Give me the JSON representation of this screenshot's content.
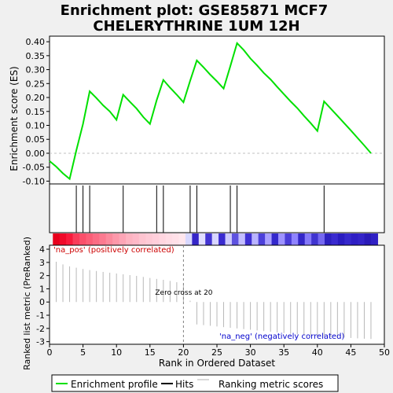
{
  "chart_data": {
    "type": "line",
    "title_line1": "Enrichment plot: GSE85871 MCF7",
    "title_line2": "CHELERYTHRINE 1UM 12H",
    "es_panel": {
      "ylabel": "Enrichment score (ES)",
      "ylim": [
        -0.11,
        0.42
      ],
      "yticks": [
        -0.1,
        -0.05,
        0.0,
        0.05,
        0.1,
        0.15,
        0.2,
        0.25,
        0.3,
        0.35,
        0.4
      ],
      "ytick_labels": [
        "-0.10",
        "-0.05",
        "0.00",
        "0.05",
        "0.10",
        "0.15",
        "0.20",
        "0.25",
        "0.30",
        "0.35",
        "0.40"
      ],
      "series": {
        "x": [
          0,
          1,
          2,
          3,
          4,
          5,
          6,
          7,
          8,
          9,
          10,
          11,
          12,
          13,
          14,
          15,
          16,
          17,
          18,
          19,
          20,
          21,
          22,
          23,
          24,
          25,
          26,
          27,
          28,
          29,
          30,
          31,
          32,
          33,
          34,
          35,
          36,
          37,
          38,
          39,
          40,
          41,
          42,
          43,
          44,
          45,
          46,
          47,
          48
        ],
        "y": [
          -0.028,
          -0.048,
          -0.072,
          -0.092,
          0.01,
          0.105,
          0.222,
          0.198,
          0.172,
          0.15,
          0.12,
          0.21,
          0.185,
          0.16,
          0.13,
          0.105,
          0.19,
          0.263,
          0.235,
          0.21,
          0.183,
          0.26,
          0.333,
          0.308,
          0.282,
          0.258,
          0.232,
          0.312,
          0.395,
          0.37,
          0.34,
          0.315,
          0.288,
          0.265,
          0.238,
          0.212,
          0.186,
          0.162,
          0.134,
          0.108,
          0.08,
          0.186,
          0.16,
          0.134,
          0.108,
          0.082,
          0.055,
          0.028,
          0.0
        ]
      }
    },
    "hits": [
      4,
      5,
      6,
      11,
      16,
      17,
      21,
      22,
      27,
      28,
      41
    ],
    "metric_panel": {
      "ylabel": "Ranked list metric (PreRanked)",
      "ylim": [
        -3.2,
        4.3
      ],
      "yticks": [
        -3,
        -2,
        -1,
        0,
        1,
        2,
        3,
        4
      ],
      "ytick_labels": [
        "-3",
        "-2",
        "-1",
        "0",
        "1",
        "2",
        "3",
        "4"
      ],
      "values": [
        3.05,
        2.85,
        2.7,
        2.6,
        2.5,
        2.42,
        2.35,
        2.28,
        2.22,
        2.16,
        2.1,
        2.04,
        1.98,
        1.9,
        1.82,
        1.75,
        1.68,
        1.6,
        1.5,
        1.38,
        0.1,
        -1.7,
        -1.75,
        -1.8,
        -1.85,
        -1.9,
        -1.95,
        -2.0,
        -2.05,
        -2.1,
        -2.15,
        -2.2,
        -2.25,
        -2.3,
        -2.35,
        -2.4,
        -2.45,
        -2.5,
        -2.55,
        -2.6,
        -2.62,
        -2.65,
        -2.68,
        -2.7,
        -2.72,
        -2.75,
        -2.78,
        -2.8
      ],
      "pos_label": "'na_pos' (positively correlated)",
      "neg_label": "'na_neg' (negatively correlated)",
      "zero_cross_label": "Zero cross at 20",
      "zero_cross": 20
    },
    "xlabel": "Rank in Ordered Dataset",
    "xlim": [
      0,
      50
    ],
    "xticks": [
      0,
      5,
      10,
      15,
      20,
      25,
      30,
      35,
      40,
      45,
      50
    ],
    "xtick_labels": [
      "0",
      "5",
      "10",
      "15",
      "20",
      "25",
      "30",
      "35",
      "40",
      "45",
      "50"
    ],
    "heatbar": {
      "start": 0.5,
      "end": 49,
      "colors": [
        "#e8001c",
        "#f00a2a",
        "#f81b3c",
        "#f93d5a",
        "#fa4f6a",
        "#fb5e77",
        "#fb6c84",
        "#fc7a90",
        "#fc8a9d",
        "#fd98aa",
        "#fda5b6",
        "#feb3c1",
        "#feb9c8",
        "#fec4d0",
        "#fecad6",
        "#ffcfdb",
        "#ffd6e0",
        "#ffdce5",
        "#ffe0e8",
        "#ffe6ed",
        "#d8d8ff",
        "#3526c8",
        "#e0ddff",
        "#4334d2",
        "#d8d5ff",
        "#3a2bd0",
        "#cdc9ff",
        "#5e52e0",
        "#c3bdff",
        "#3f30d4",
        "#b9b3ff",
        "#4c40da",
        "#a99fff",
        "#3428cc",
        "#9d92ff",
        "#4a3cd8",
        "#8f83ff",
        "#3326c8",
        "#8478f8",
        "#4034d0",
        "#7568f0",
        "#2d20c0",
        "#3a2ad0",
        "#2a1cc0",
        "#3628cc",
        "#2e1ec4",
        "#3424c8",
        "#2a1ab8",
        "#3020c4"
      ]
    },
    "legend": {
      "items": [
        {
          "label": "Enrichment profile",
          "color": "#00e000"
        },
        {
          "label": "Hits",
          "color": "#000000"
        },
        {
          "label": "Ranking metric scores",
          "color": "#b0b0b0"
        }
      ]
    }
  }
}
